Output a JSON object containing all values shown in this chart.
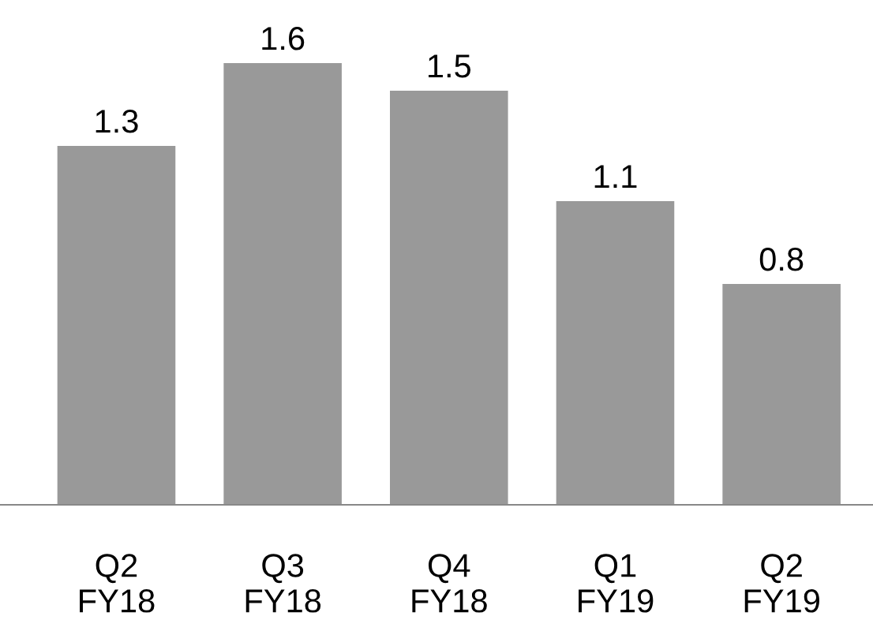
{
  "chart_data": {
    "type": "bar",
    "categories": [
      "Q2\nFY18",
      "Q3\nFY18",
      "Q4\nFY18",
      "Q1\nFY19",
      "Q2\nFY19"
    ],
    "values": [
      1.3,
      1.6,
      1.5,
      1.1,
      0.8
    ],
    "color": "#999999",
    "data_labels": true,
    "grid": false,
    "legend": false
  }
}
